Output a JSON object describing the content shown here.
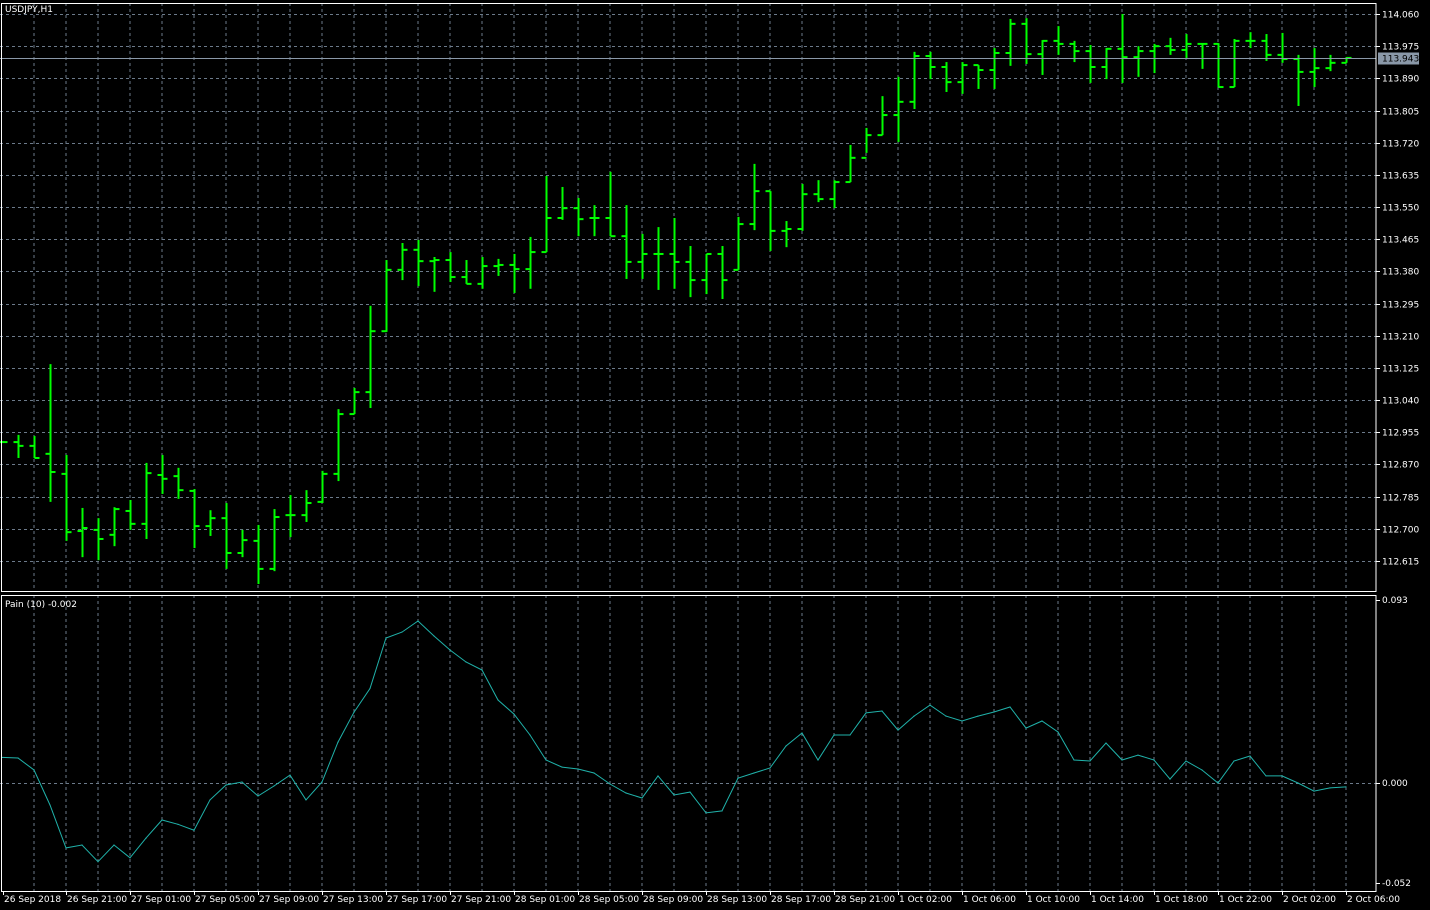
{
  "chart_title": "USDJPY,H1",
  "indicator_title": "Pain (10) -0.002",
  "colors": {
    "background": "#000000",
    "bars": "#00ff00",
    "grid": "#6c7a8a",
    "indicator_line": "#20b2aa",
    "bid_line": "#8a98a8",
    "axis_text": "#ffffff"
  },
  "chart_data": [
    {
      "type": "ohlc",
      "title": "USDJPY,H1",
      "ylim": [
        112.55,
        114.07
      ],
      "y_ticks": [
        "114.060",
        "113.975",
        "113.890",
        "113.805",
        "113.720",
        "113.635",
        "113.550",
        "113.465",
        "113.380",
        "113.295",
        "113.210",
        "113.125",
        "113.040",
        "112.955",
        "112.870",
        "112.785",
        "112.700",
        "112.615"
      ],
      "current_price": "113.943",
      "x_tick_labels": [
        "26 Sep 2018",
        "26 Sep 21:00",
        "27 Sep 01:00",
        "27 Sep 05:00",
        "27 Sep 09:00",
        "27 Sep 13:00",
        "27 Sep 17:00",
        "27 Sep 21:00",
        "28 Sep 01:00",
        "28 Sep 05:00",
        "28 Sep 09:00",
        "28 Sep 13:00",
        "28 Sep 17:00",
        "28 Sep 21:00",
        "1 Oct 02:00",
        "1 Oct 06:00",
        "1 Oct 10:00",
        "1 Oct 14:00",
        "1 Oct 18:00",
        "1 Oct 22:00",
        "2 Oct 02:00",
        "2 Oct 06:00"
      ],
      "grid": true,
      "ohlc": [
        [
          112.929,
          112.932,
          112.927,
          112.929
        ],
        [
          112.929,
          112.948,
          112.887,
          112.919
        ],
        [
          112.919,
          112.945,
          112.887,
          112.887
        ],
        [
          112.898,
          113.135,
          112.771,
          112.85
        ],
        [
          112.845,
          112.895,
          112.668,
          112.691
        ],
        [
          112.694,
          112.755,
          112.625,
          112.702
        ],
        [
          112.697,
          112.728,
          112.617,
          112.673
        ],
        [
          112.684,
          112.757,
          112.654,
          112.752
        ],
        [
          112.747,
          112.776,
          112.697,
          112.713
        ],
        [
          112.713,
          112.874,
          112.673,
          112.847
        ],
        [
          112.842,
          112.895,
          112.792,
          112.832
        ],
        [
          112.839,
          112.861,
          112.779,
          112.802
        ],
        [
          112.8,
          112.805,
          112.649,
          112.707
        ],
        [
          112.707,
          112.749,
          112.681,
          112.728
        ],
        [
          112.728,
          112.768,
          112.594,
          112.636
        ],
        [
          112.636,
          112.697,
          112.625,
          112.67
        ],
        [
          112.668,
          112.71,
          112.554,
          112.594
        ],
        [
          112.594,
          112.752,
          112.588,
          112.731
        ],
        [
          112.736,
          112.789,
          112.678,
          112.736
        ],
        [
          112.736,
          112.802,
          112.718,
          112.768
        ],
        [
          112.771,
          112.853,
          112.768,
          112.845
        ],
        [
          112.845,
          113.016,
          112.826,
          113.003
        ],
        [
          113.003,
          113.072,
          113.003,
          113.061
        ],
        [
          113.061,
          113.289,
          113.019,
          113.222
        ],
        [
          113.222,
          113.41,
          113.22,
          113.384
        ],
        [
          113.384,
          113.455,
          113.357,
          113.437
        ],
        [
          113.437,
          113.463,
          113.341,
          113.407
        ],
        [
          113.407,
          113.418,
          113.326,
          113.41
        ],
        [
          113.41,
          113.431,
          113.352,
          113.365
        ],
        [
          113.365,
          113.41,
          113.347,
          113.347
        ],
        [
          113.347,
          113.418,
          113.334,
          113.394
        ],
        [
          113.394,
          113.413,
          113.368,
          113.397
        ],
        [
          113.397,
          113.426,
          113.323,
          113.386
        ],
        [
          113.386,
          113.471,
          113.334,
          113.431
        ],
        [
          113.431,
          113.632,
          113.431,
          113.521
        ],
        [
          113.521,
          113.603,
          113.516,
          113.547
        ],
        [
          113.547,
          113.574,
          113.473,
          113.518
        ],
        [
          113.521,
          113.555,
          113.473,
          113.521
        ],
        [
          113.521,
          113.643,
          113.473,
          113.473
        ],
        [
          113.473,
          113.555,
          113.36,
          113.405
        ],
        [
          113.405,
          113.479,
          113.36,
          113.426
        ],
        [
          113.426,
          113.497,
          113.331,
          113.426
        ],
        [
          113.426,
          113.521,
          113.334,
          113.405
        ],
        [
          113.405,
          113.447,
          113.312,
          113.357
        ],
        [
          113.357,
          113.426,
          113.32,
          113.426
        ],
        [
          113.426,
          113.447,
          113.307,
          113.357
        ],
        [
          113.384,
          113.524,
          113.384,
          113.505
        ],
        [
          113.505,
          113.664,
          113.489,
          113.592
        ],
        [
          113.592,
          113.592,
          113.434,
          113.487
        ],
        [
          113.487,
          113.513,
          113.444,
          113.492
        ],
        [
          113.492,
          113.611,
          113.487,
          113.584
        ],
        [
          113.584,
          113.621,
          113.563,
          113.571
        ],
        [
          113.571,
          113.621,
          113.547,
          113.616
        ],
        [
          113.616,
          113.714,
          113.616,
          113.68
        ],
        [
          113.68,
          113.759,
          113.693,
          113.74
        ],
        [
          113.74,
          113.843,
          113.74,
          113.793
        ],
        [
          113.793,
          113.894,
          113.722,
          113.828
        ],
        [
          113.828,
          113.96,
          113.809,
          113.949
        ],
        [
          113.949,
          113.96,
          113.888,
          113.92
        ],
        [
          113.92,
          113.933,
          113.854,
          113.88
        ],
        [
          113.88,
          113.933,
          113.849,
          113.925
        ],
        [
          113.925,
          113.925,
          113.862,
          113.912
        ],
        [
          113.912,
          113.97,
          113.862,
          113.957
        ],
        [
          113.957,
          114.047,
          113.923,
          114.034
        ],
        [
          114.034,
          114.049,
          113.928,
          113.954
        ],
        [
          113.954,
          113.991,
          113.899,
          113.989
        ],
        [
          113.989,
          114.028,
          113.952,
          113.981
        ],
        [
          113.981,
          113.989,
          113.933,
          113.962
        ],
        [
          113.962,
          113.978,
          113.878,
          113.92
        ],
        [
          113.92,
          113.97,
          113.888,
          113.968
        ],
        [
          113.968,
          114.06,
          113.878,
          113.946
        ],
        [
          113.946,
          113.975,
          113.894,
          113.962
        ],
        [
          113.962,
          113.981,
          113.904,
          113.975
        ],
        [
          113.975,
          113.997,
          113.952,
          113.965
        ],
        [
          113.965,
          114.007,
          113.941,
          113.981
        ],
        [
          113.981,
          113.981,
          113.915,
          113.981
        ],
        [
          113.981,
          113.983,
          113.867,
          113.867
        ],
        [
          113.867,
          113.994,
          113.867,
          113.989
        ],
        [
          113.989,
          114.012,
          113.97,
          113.989
        ],
        [
          113.989,
          114.007,
          113.936,
          113.952
        ],
        [
          113.952,
          114.01,
          113.931,
          113.941
        ],
        [
          113.941,
          113.952,
          113.817,
          113.907
        ],
        [
          113.907,
          113.97,
          113.867,
          113.917
        ],
        [
          113.917,
          113.952,
          113.909,
          113.931
        ],
        [
          113.931,
          113.946,
          113.931,
          113.944
        ]
      ]
    },
    {
      "type": "line",
      "title": "Pain (10) -0.002",
      "ylim": [
        -0.052,
        0.093
      ],
      "y_ticks": [
        "0.093",
        "0.000",
        "-0.052"
      ],
      "values": [
        0.013,
        0.0127,
        0.0066,
        -0.0112,
        -0.033,
        -0.0315,
        -0.04,
        -0.0315,
        -0.038,
        -0.028,
        -0.0188,
        -0.021,
        -0.024,
        -0.0086,
        -0.001,
        0.0005,
        -0.0066,
        -0.0015,
        0.004,
        -0.0086,
        0.0005,
        0.0208,
        0.036,
        0.048,
        0.0737,
        0.0767,
        0.0823,
        0.0747,
        0.0676,
        0.0615,
        0.0574,
        0.0422,
        0.035,
        0.0244,
        0.0117,
        0.0081,
        0.0071,
        0.0051,
        -0.0005,
        -0.0051,
        -0.0076,
        0.0036,
        -0.0061,
        -0.0046,
        -0.0152,
        -0.0142,
        0.0025,
        0.0051,
        0.0076,
        0.0188,
        0.0254,
        0.0117,
        0.0244,
        0.0244,
        0.0356,
        0.0366,
        0.0269,
        0.034,
        0.0396,
        0.034,
        0.0315,
        0.034,
        0.0361,
        0.0386,
        0.0279,
        0.0315,
        0.0259,
        0.0117,
        0.0112,
        0.0203,
        0.0117,
        0.0142,
        0.0117,
        0.002,
        0.0112,
        0.0066,
        0,
        0.0112,
        0.0137,
        0.0036,
        0.0036,
        0,
        -0.0041,
        -0.0025,
        -0.002
      ]
    }
  ]
}
